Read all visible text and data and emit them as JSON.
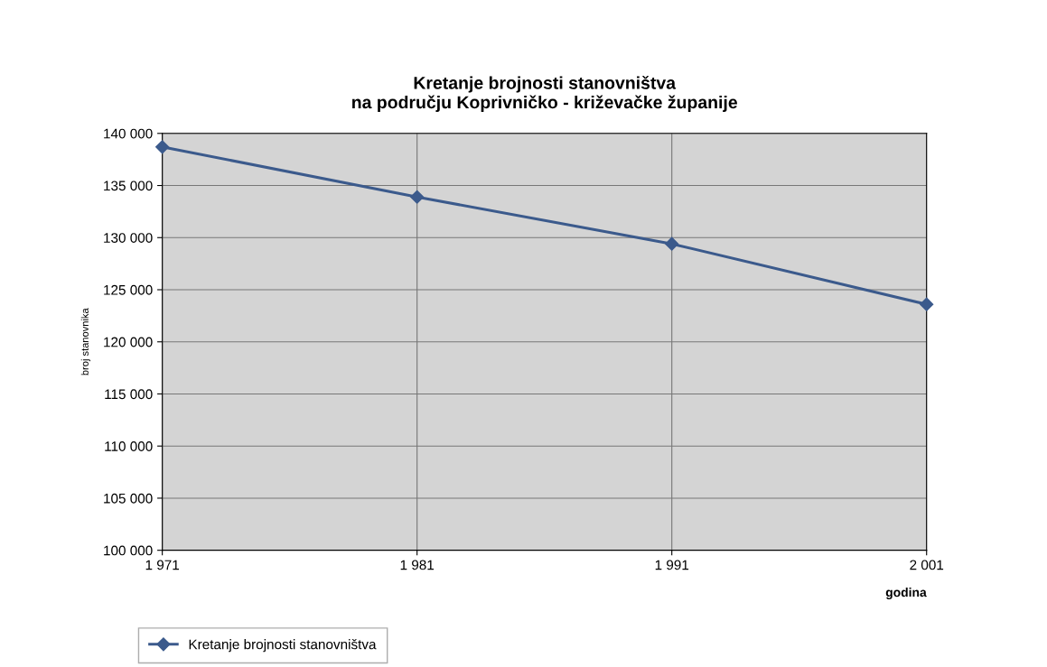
{
  "chart_data": {
    "type": "line",
    "title": "Kretanje brojnosti stanovništva\nna području Koprivničko - križevačke županije",
    "xlabel": "godina",
    "ylabel": "broj stanovnika",
    "categories": [
      "1 971",
      "1 981",
      "1 991",
      "2 001"
    ],
    "series": [
      {
        "name": "Kretanje brojnosti stanovništva",
        "color": "#3b5a8c",
        "values": [
          138700,
          133900,
          129400,
          123600
        ]
      }
    ],
    "ylim": [
      100000,
      140000
    ],
    "yticks": [
      {
        "value": 100000,
        "label": "100 000"
      },
      {
        "value": 105000,
        "label": "105 000"
      },
      {
        "value": 110000,
        "label": "110 000"
      },
      {
        "value": 115000,
        "label": "115 000"
      },
      {
        "value": 120000,
        "label": "120 000"
      },
      {
        "value": 125000,
        "label": "125 000"
      },
      {
        "value": 130000,
        "label": "130 000"
      },
      {
        "value": 135000,
        "label": "135 000"
      },
      {
        "value": 140000,
        "label": "140 000"
      }
    ],
    "grid": true,
    "legend": "bottom left",
    "marker": "diamond",
    "line_style": "solid"
  }
}
